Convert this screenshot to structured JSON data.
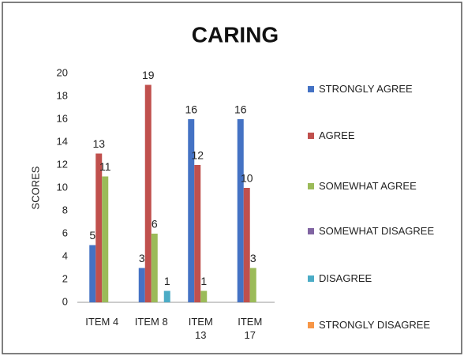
{
  "chart_data": {
    "type": "bar",
    "title": "CARING",
    "y_label": "SCORES",
    "categories": [
      "ITEM 4",
      "ITEM 8",
      "ITEM 13",
      "ITEM 17"
    ],
    "series": [
      {
        "name": "STRONGLY AGREE",
        "color": "#4472c4",
        "values": [
          5,
          3,
          16,
          16
        ]
      },
      {
        "name": "AGREE",
        "color": "#c0504d",
        "values": [
          13,
          19,
          12,
          10
        ]
      },
      {
        "name": "SOMEWHAT AGREE",
        "color": "#9bbb59",
        "values": [
          11,
          6,
          1,
          3
        ]
      },
      {
        "name": "SOMEWHAT DISAGREE",
        "color": "#8064a2",
        "values": [
          null,
          null,
          null,
          null
        ]
      },
      {
        "name": "DISAGREE",
        "color": "#4bacc6",
        "values": [
          null,
          1,
          null,
          null
        ]
      },
      {
        "name": "STRONGLY DISAGREE",
        "color": "#f79646",
        "values": [
          null,
          null,
          null,
          null
        ]
      }
    ],
    "ylim": [
      0,
      20
    ],
    "yticks": [
      0,
      2,
      4,
      6,
      8,
      10,
      12,
      14,
      16,
      18,
      20
    ],
    "grid": false,
    "legend": "right"
  }
}
